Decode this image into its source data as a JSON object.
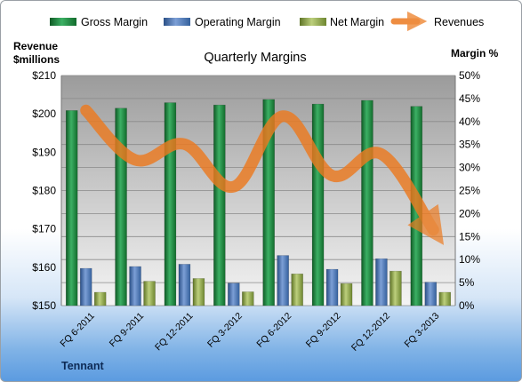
{
  "chart_data": {
    "type": "bar",
    "title": "Quarterly Margins",
    "categories": [
      "FQ 6-2011",
      "FQ 9-2011",
      "FQ 12-2011",
      "FQ 3-2012",
      "FQ 6-2012",
      "FQ 9-2012",
      "FQ 12-2012",
      "FQ 3-2013"
    ],
    "series": [
      {
        "name": "Gross Margin",
        "axis": "right",
        "values": [
          42.4,
          42.9,
          44.1,
          43.6,
          44.8,
          43.8,
          44.6,
          43.3
        ],
        "color": "#1e8a3c"
      },
      {
        "name": "Operating Margin",
        "axis": "right",
        "values": [
          8.1,
          8.5,
          9.0,
          4.9,
          10.9,
          7.9,
          10.2,
          5.1
        ],
        "color": "#4a74b4"
      },
      {
        "name": "Net Margin",
        "axis": "right",
        "values": [
          2.9,
          5.3,
          5.9,
          3.0,
          6.9,
          4.8,
          7.5,
          2.9
        ],
        "color": "#94ac4c"
      },
      {
        "name": "Revenues",
        "axis": "left",
        "type": "line",
        "values": [
          200.9,
          188.0,
          192.1,
          181.0,
          199.4,
          183.9,
          189.5,
          173.0
        ],
        "color": "#f0882c"
      }
    ],
    "ylabel_left": "Revenue\n$millions",
    "ylabel_right": "Margin %",
    "ylim_left": [
      150,
      210
    ],
    "ylim_right": [
      0,
      50
    ],
    "yticks_left": [
      "$150",
      "$160",
      "$170",
      "$180",
      "$190",
      "$200",
      "$210"
    ],
    "yticks_right": [
      "0%",
      "5%",
      "10%",
      "15%",
      "20%",
      "25%",
      "30%",
      "35%",
      "40%",
      "45%",
      "50%"
    ],
    "grid": true,
    "legend": "top"
  },
  "labels": {
    "left_axis_line1": "Revenue",
    "left_axis_line2": "$millions",
    "right_axis": "Margin %",
    "footer": "Tennant"
  }
}
